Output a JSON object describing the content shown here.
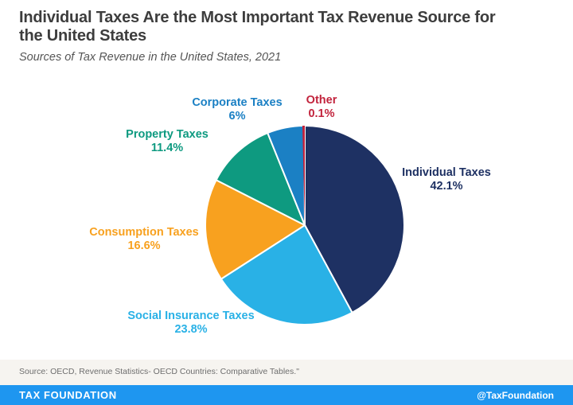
{
  "header": {
    "title": "Individual Taxes Are the Most Important Tax Revenue Source for the United States",
    "subtitle": "Sources of Tax Revenue in the United States, 2021"
  },
  "chart_data": {
    "type": "pie",
    "title": "Sources of Tax Revenue in the United States, 2021",
    "start_angle": "12-oclock",
    "direction": "clockwise",
    "radius_px": 125,
    "separator_color": "#ffffff",
    "slices": [
      {
        "label": "Individual Taxes",
        "value": 42.1,
        "display": "42.1%",
        "color": "#1e3163"
      },
      {
        "label": "Social Insurance Taxes",
        "value": 23.8,
        "display": "23.8%",
        "color": "#29b1e6"
      },
      {
        "label": "Consumption Taxes",
        "value": 16.6,
        "display": "16.6%",
        "color": "#f8a11f"
      },
      {
        "label": "Property Taxes",
        "value": 11.4,
        "display": "11.4%",
        "color": "#0e9a80"
      },
      {
        "label": "Corporate Taxes",
        "value": 6,
        "display": "6%",
        "color": "#1b80c4"
      },
      {
        "label": "Other",
        "value": 0.1,
        "display": "0.1%",
        "color": "#c2233c"
      }
    ]
  },
  "footer": {
    "source": "Source: OECD, Revenue Statistics- OECD Countries: Comparative Tables.\"",
    "brand": "TAX FOUNDATION",
    "handle": "@TaxFoundation",
    "bar_color": "#1e96f0"
  }
}
